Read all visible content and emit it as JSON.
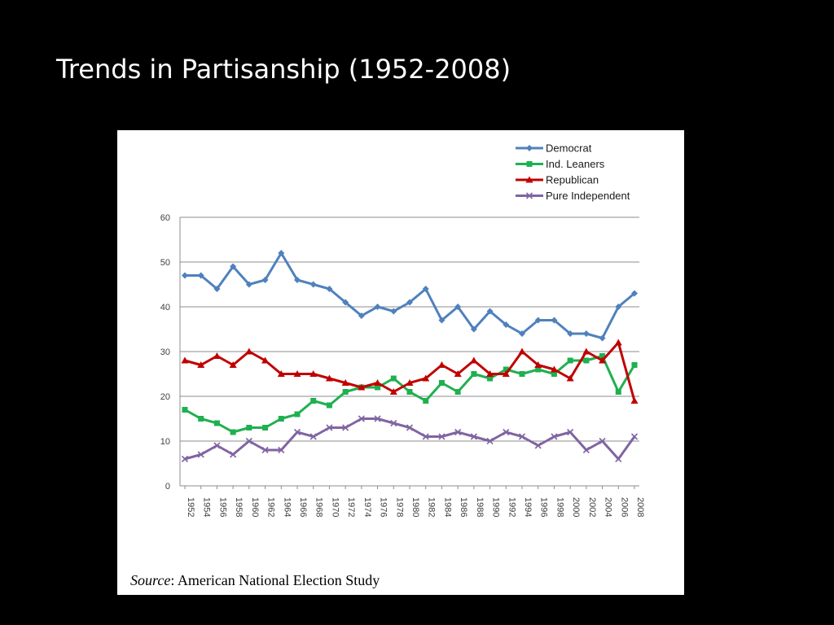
{
  "slide": {
    "title": "Trends in Partisanship (1952-2008)"
  },
  "source": {
    "label": "Source",
    "text": ": American National Election Study"
  },
  "chart_data": {
    "type": "line",
    "title": "",
    "xlabel": "",
    "ylabel": "",
    "ylim": [
      0,
      60
    ],
    "yticks": [
      "0",
      "10",
      "20",
      "30",
      "40",
      "50",
      "60"
    ],
    "grid": true,
    "legend_position": "top-right",
    "categories": [
      "1952",
      "1954",
      "1956",
      "1958",
      "1960",
      "1962",
      "1964",
      "1966",
      "1968",
      "1970",
      "1972",
      "1974",
      "1976",
      "1978",
      "1980",
      "1982",
      "1984",
      "1986",
      "1988",
      "1990",
      "1992",
      "1994",
      "1996",
      "1998",
      "2000",
      "2002",
      "2004",
      "2006",
      "2008"
    ],
    "series": [
      {
        "name": "Democrat",
        "color": "#4F81BD",
        "marker": "diamond",
        "values": [
          47,
          47,
          44,
          49,
          45,
          46,
          52,
          46,
          45,
          44,
          41,
          38,
          40,
          39,
          41,
          44,
          37,
          40,
          35,
          39,
          36,
          34,
          37,
          37,
          34,
          34,
          33,
          40,
          43
        ]
      },
      {
        "name": "Ind. Leaners",
        "color": "#1FB050",
        "marker": "square",
        "values": [
          17,
          15,
          14,
          12,
          13,
          13,
          15,
          16,
          19,
          18,
          21,
          22,
          22,
          24,
          21,
          19,
          23,
          21,
          25,
          24,
          26,
          25,
          26,
          25,
          28,
          28,
          29,
          21,
          27
        ]
      },
      {
        "name": "Republican",
        "color": "#C00000",
        "marker": "triangle",
        "values": [
          28,
          27,
          29,
          27,
          30,
          28,
          25,
          25,
          25,
          24,
          23,
          22,
          23,
          21,
          23,
          24,
          27,
          25,
          28,
          25,
          25,
          30,
          27,
          26,
          24,
          30,
          28,
          32,
          19
        ]
      },
      {
        "name": "Pure Independent",
        "color": "#8064A2",
        "marker": "x",
        "values": [
          6,
          7,
          9,
          7,
          10,
          8,
          8,
          12,
          11,
          13,
          13,
          15,
          15,
          14,
          13,
          11,
          11,
          12,
          11,
          10,
          12,
          11,
          9,
          11,
          12,
          8,
          10,
          6,
          11
        ]
      }
    ]
  }
}
